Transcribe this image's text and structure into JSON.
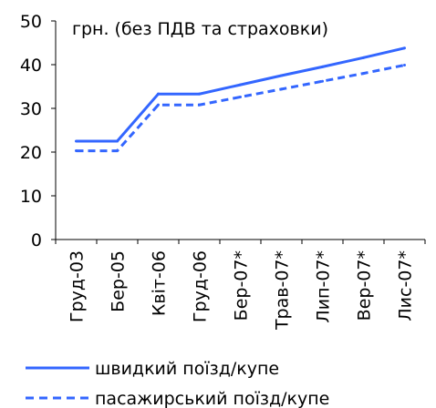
{
  "chart_data": {
    "type": "line",
    "categories": [
      "Груд-03",
      "Бер-05",
      "Квіт-06",
      "Груд-06",
      "Бер-07*",
      "Трав-07*",
      "Лип-07*",
      "Вер-07*",
      "Лис-07*"
    ],
    "series": [
      {
        "name": "швидкий поїзд/купе",
        "values": [
          22.5,
          22.5,
          33.3,
          33.3,
          35.4,
          37.5,
          39.5,
          41.6,
          43.8
        ],
        "color": "#3366ff",
        "style": "solid"
      },
      {
        "name": "пасажирський поїзд/купе",
        "values": [
          20.3,
          20.3,
          30.8,
          30.8,
          32.6,
          34.4,
          36.2,
          38.0,
          39.9
        ],
        "color": "#3366ff",
        "style": "dashed"
      }
    ],
    "ylim": [
      0,
      50
    ],
    "yticks": [
      0,
      10,
      20,
      30,
      40,
      50
    ],
    "annotation": "грн. (без ПДВ та страховки)",
    "grid": false,
    "legend_position": "bottom"
  }
}
